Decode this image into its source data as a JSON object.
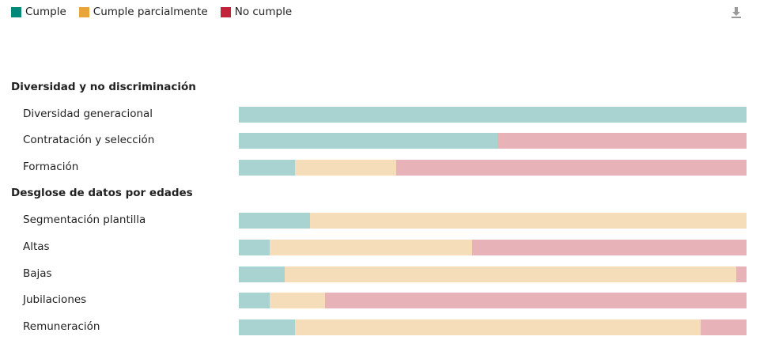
{
  "legend": [
    {
      "label": "Cumple",
      "color": "#00897b"
    },
    {
      "label": "Cumple parcialmente",
      "color": "#e9a43a"
    },
    {
      "label": "No cumple",
      "color": "#c0233a"
    }
  ],
  "download_icon": "download-icon",
  "chart_data": {
    "type": "bar",
    "orientation": "horizontal",
    "stacked": true,
    "xlim": [
      0,
      100
    ],
    "grid": false,
    "legend_position": "top-left",
    "series_colors_rendered": [
      "#a8d3d0",
      "#f6ddb9",
      "#e7b2b8"
    ],
    "groups": [
      {
        "title": "Diversidad y no discriminación",
        "rows": [
          {
            "label": "Diversidad generacional",
            "values": [
              100,
              0,
              0
            ]
          },
          {
            "label": "Contratación y selección",
            "values": [
              51,
              0,
              49
            ]
          },
          {
            "label": "Formación",
            "values": [
              11,
              20,
              69
            ]
          }
        ]
      },
      {
        "title": "Desglose de datos por edades",
        "rows": [
          {
            "label": "Segmentación plantilla",
            "values": [
              14,
              86,
              0
            ]
          },
          {
            "label": "Altas",
            "values": [
              6,
              40,
              54
            ]
          },
          {
            "label": "Bajas",
            "values": [
              9,
              89,
              2
            ]
          },
          {
            "label": "Jubilaciones",
            "values": [
              6,
              11,
              83
            ]
          },
          {
            "label": "Remuneración",
            "values": [
              11,
              80,
              9
            ]
          }
        ]
      }
    ]
  }
}
